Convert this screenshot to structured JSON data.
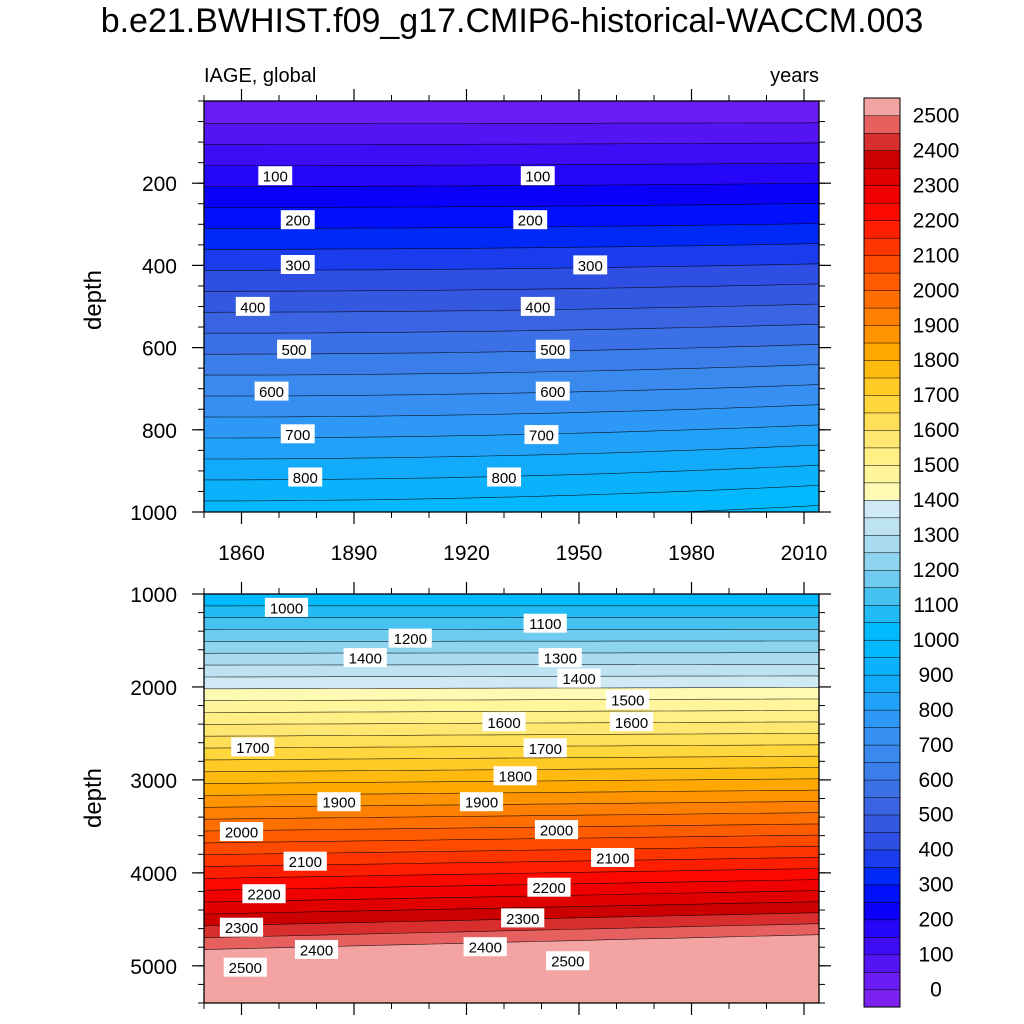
{
  "title": "b.e21.BWHIST.f09_g17.CMIP6-historical-WACCM.003",
  "chart_data": {
    "type": "contour",
    "variable_label": "IAGE, global",
    "units_label": "years",
    "ylabel": "depth",
    "x_axis": {
      "range": [
        1850,
        2014
      ],
      "ticks": [
        1860,
        1890,
        1920,
        1950,
        1980,
        2010
      ]
    },
    "panels": [
      {
        "name": "upper",
        "y_range": [
          0,
          1000
        ],
        "y_ticks": [
          200,
          400,
          600,
          800,
          1000
        ],
        "field": "top",
        "contour_labels": [
          {
            "text": "100",
            "year": 1869,
            "depth": 183
          },
          {
            "text": "100",
            "year": 1939,
            "depth": 183
          },
          {
            "text": "200",
            "year": 1875,
            "depth": 290
          },
          {
            "text": "200",
            "year": 1937,
            "depth": 290
          },
          {
            "text": "300",
            "year": 1875,
            "depth": 399
          },
          {
            "text": "300",
            "year": 1953,
            "depth": 400
          },
          {
            "text": "400",
            "year": 1863,
            "depth": 501
          },
          {
            "text": "400",
            "year": 1939,
            "depth": 501
          },
          {
            "text": "500",
            "year": 1874,
            "depth": 605
          },
          {
            "text": "500",
            "year": 1943,
            "depth": 605
          },
          {
            "text": "600",
            "year": 1868,
            "depth": 707
          },
          {
            "text": "600",
            "year": 1943,
            "depth": 707
          },
          {
            "text": "700",
            "year": 1875,
            "depth": 811
          },
          {
            "text": "700",
            "year": 1940,
            "depth": 813
          },
          {
            "text": "800",
            "year": 1877,
            "depth": 916
          },
          {
            "text": "800",
            "year": 1930,
            "depth": 916
          }
        ]
      },
      {
        "name": "lower",
        "y_range": [
          1000,
          5400
        ],
        "y_ticks": [
          1000,
          2000,
          3000,
          4000,
          5000
        ],
        "field": "bottom",
        "contour_labels": [
          {
            "text": "1000",
            "year": 1872,
            "depth": 1150
          },
          {
            "text": "1100",
            "year": 1941,
            "depth": 1320
          },
          {
            "text": "1200",
            "year": 1905,
            "depth": 1480
          },
          {
            "text": "1300",
            "year": 1945,
            "depth": 1690
          },
          {
            "text": "1400",
            "year": 1893,
            "depth": 1690
          },
          {
            "text": "1400",
            "year": 1950,
            "depth": 1910
          },
          {
            "text": "1500",
            "year": 1963,
            "depth": 2140
          },
          {
            "text": "1600",
            "year": 1930,
            "depth": 2380
          },
          {
            "text": "1600",
            "year": 1964,
            "depth": 2380
          },
          {
            "text": "1700",
            "year": 1863,
            "depth": 2650
          },
          {
            "text": "1700",
            "year": 1941,
            "depth": 2660
          },
          {
            "text": "1800",
            "year": 1933,
            "depth": 2960
          },
          {
            "text": "1900",
            "year": 1886,
            "depth": 3240
          },
          {
            "text": "1900",
            "year": 1924,
            "depth": 3240
          },
          {
            "text": "2000",
            "year": 1860,
            "depth": 3560
          },
          {
            "text": "2000",
            "year": 1944,
            "depth": 3540
          },
          {
            "text": "2100",
            "year": 1877,
            "depth": 3880
          },
          {
            "text": "2100",
            "year": 1959,
            "depth": 3840
          },
          {
            "text": "2200",
            "year": 1866,
            "depth": 4230
          },
          {
            "text": "2200",
            "year": 1942,
            "depth": 4160
          },
          {
            "text": "2300",
            "year": 1860,
            "depth": 4590
          },
          {
            "text": "2300",
            "year": 1935,
            "depth": 4490
          },
          {
            "text": "2400",
            "year": 1880,
            "depth": 4830
          },
          {
            "text": "2400",
            "year": 1925,
            "depth": 4800
          },
          {
            "text": "2500",
            "year": 1861,
            "depth": 5020
          },
          {
            "text": "2500",
            "year": 1947,
            "depth": 4950
          }
        ]
      }
    ],
    "colorbar": {
      "min": 0,
      "max": 2550,
      "step": 50,
      "labels": [
        0,
        100,
        200,
        300,
        400,
        500,
        600,
        700,
        800,
        900,
        1000,
        1100,
        1200,
        1300,
        1400,
        1500,
        1600,
        1700,
        1800,
        1900,
        2000,
        2100,
        2200,
        2300,
        2400,
        2500
      ],
      "colors": [
        "#7b22f0",
        "#6a1cf2",
        "#5514f4",
        "#3f0cf6",
        "#2606f8",
        "#0a00fa",
        "#0010fc",
        "#0028f6",
        "#1a3cec",
        "#2e4ee4",
        "#3558e0",
        "#3a64e2",
        "#3c70e6",
        "#3b7eea",
        "#3a8aee",
        "#378ff2",
        "#2e98f6",
        "#21a2f8",
        "#12aafa",
        "#0ab2fc",
        "#04b8fe",
        "#00bafe",
        "#21bcf4",
        "#46c2f0",
        "#6fcbef",
        "#8fd4ef",
        "#a9dcf0",
        "#bde3f2",
        "#cfeaf5",
        "#fffab3",
        "#fff59a",
        "#ffef84",
        "#ffe871",
        "#ffdf57",
        "#ffd63c",
        "#ffca26",
        "#ffba10",
        "#ffa800",
        "#ff9400",
        "#ff8000",
        "#ff6e00",
        "#ff5b00",
        "#ff4a00",
        "#ff3500",
        "#ff1e00",
        "#fd0800",
        "#f00000",
        "#e00000",
        "#cc0000",
        "#d92e2e",
        "#e66060",
        "#f4a3a3"
      ]
    }
  }
}
